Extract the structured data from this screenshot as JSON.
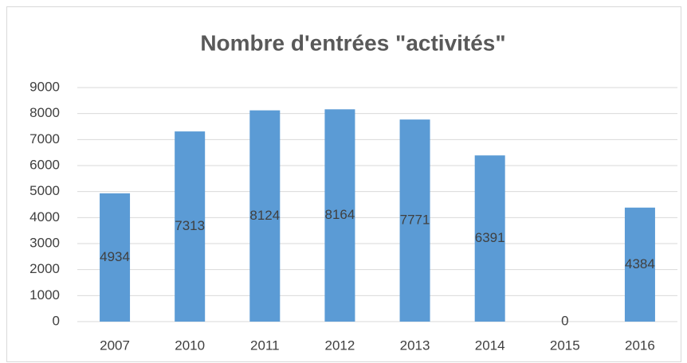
{
  "chart_data": {
    "type": "bar",
    "title": "Nombre d'entrées \"activités\"",
    "categories": [
      "2007",
      "2010",
      "2011",
      "2012",
      "2013",
      "2014",
      "2015",
      "2016"
    ],
    "values": [
      4934,
      7313,
      8124,
      8164,
      7771,
      6391,
      0,
      4384
    ],
    "color": "#5b9bd5",
    "ylim": [
      0,
      9000
    ],
    "yticks": [
      0,
      1000,
      2000,
      3000,
      4000,
      5000,
      6000,
      7000,
      8000,
      9000
    ],
    "grid": true
  }
}
